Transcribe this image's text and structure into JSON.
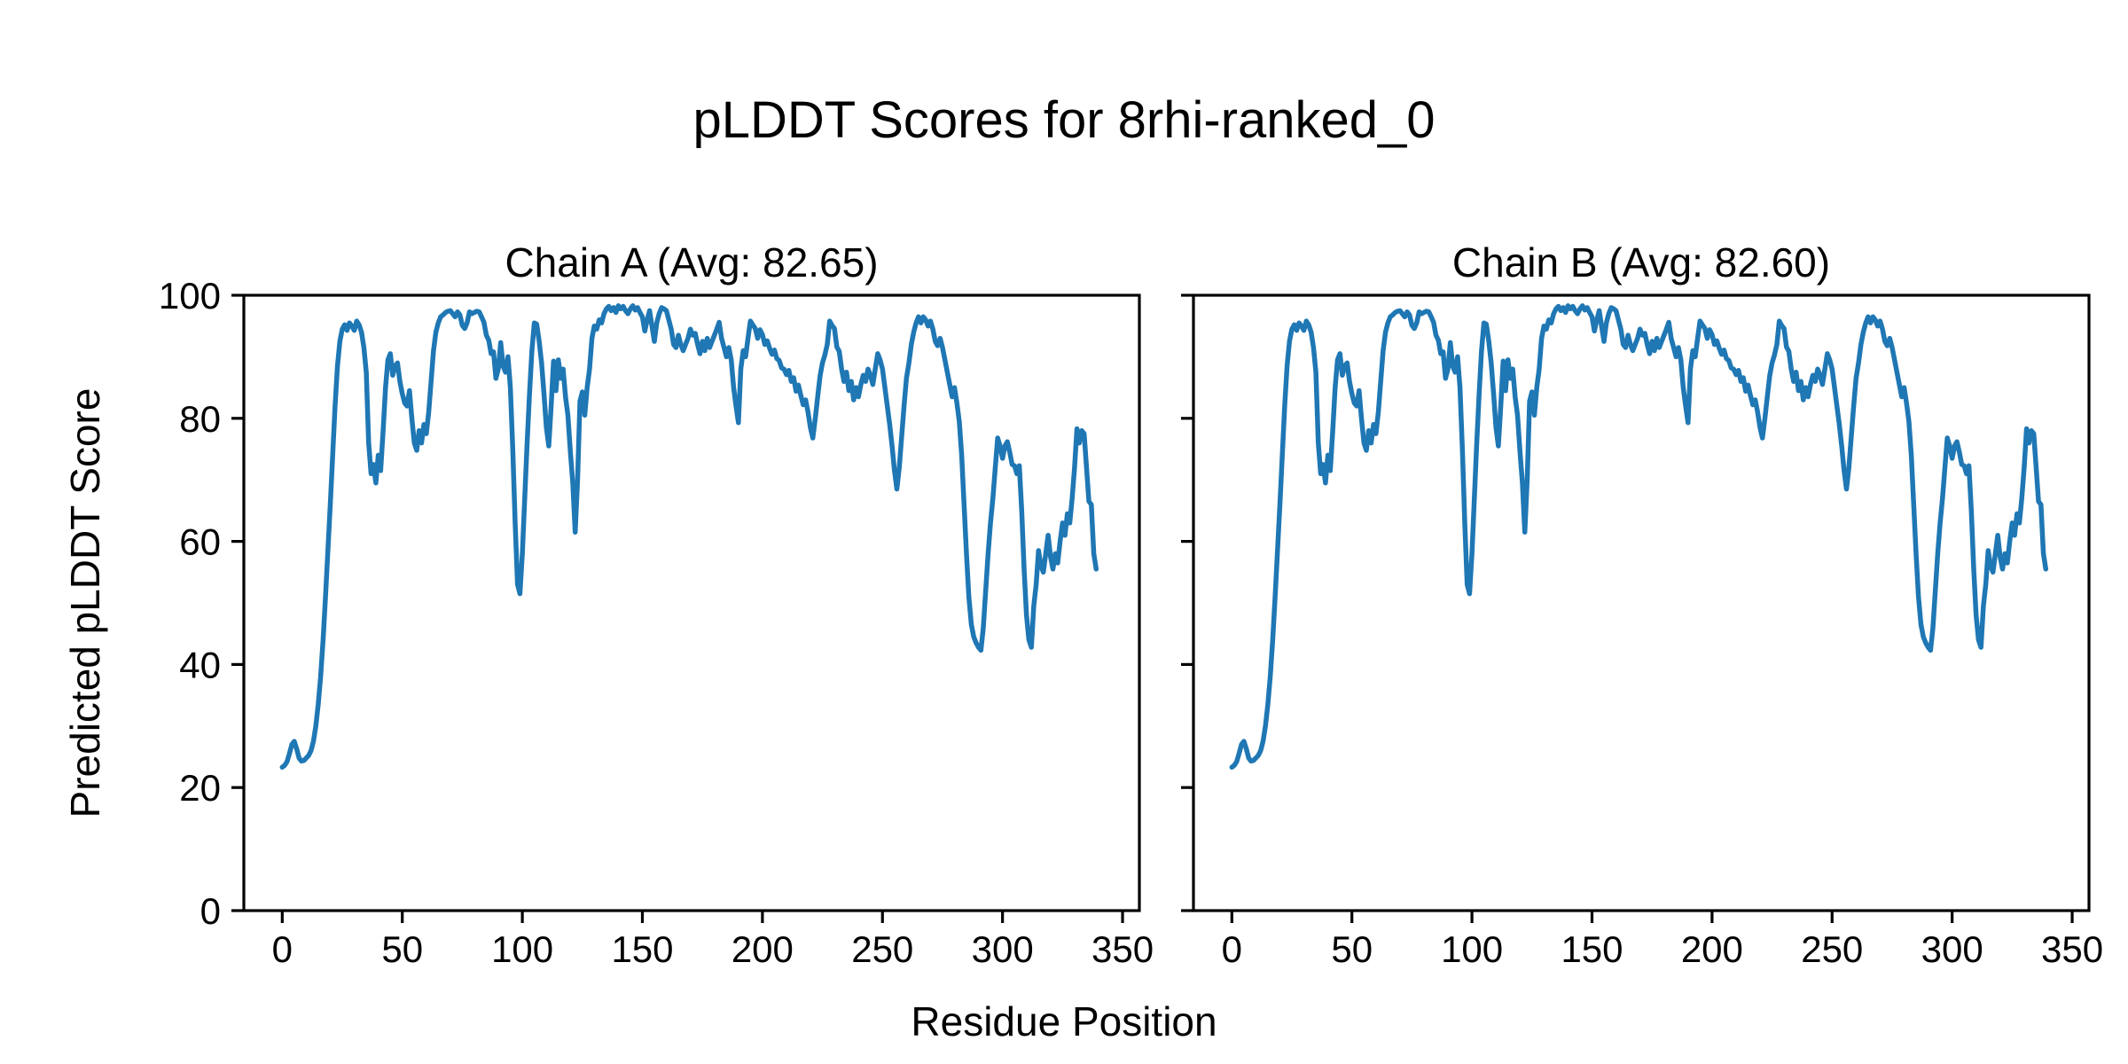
{
  "chart_data": {
    "type": "line",
    "suptitle": "pLDDT Scores for 8rhi-ranked_0",
    "xlabel": "Residue Position",
    "ylabel": "Predicted pLDDT Score",
    "xlim": [
      -16,
      357
    ],
    "ylim": [
      0,
      100
    ],
    "xticks": [
      0,
      50,
      100,
      150,
      200,
      250,
      300,
      350
    ],
    "yticks": [
      0,
      20,
      40,
      60,
      80,
      100
    ],
    "grid": false,
    "legend": "none",
    "line_color": "#1f77b4",
    "background_color": "#ffffff",
    "text_color": "#000000",
    "subplots": [
      {
        "title": "Chain A (Avg: 82.65)",
        "chain": "A",
        "avg_plddt": 82.65
      },
      {
        "title": "Chain B (Avg: 82.60)",
        "chain": "B",
        "avg_plddt": 82.6
      }
    ],
    "x_start": 0,
    "x_step": 1,
    "y": [
      23.3,
      23.6,
      24.2,
      25.5,
      27,
      27.5,
      26.3,
      24.8,
      24.3,
      24.4,
      24.8,
      25.2,
      26,
      27.5,
      30,
      33.5,
      38,
      44,
      51,
      58.5,
      66,
      74,
      82,
      88.5,
      92.5,
      94.5,
      95.2,
      94.3,
      95.5,
      95,
      94.3,
      95.8,
      95.2,
      94,
      91.5,
      87.5,
      76,
      71,
      72.5,
      69.5,
      74,
      71.5,
      78,
      85,
      89.5,
      90.5,
      87,
      88.5,
      89,
      86,
      84,
      82.5,
      82,
      84.5,
      80,
      76,
      74.8,
      78,
      76,
      79,
      77.5,
      81,
      86,
      91,
      94,
      95.5,
      96.5,
      96.8,
      97.2,
      97.4,
      97.5,
      97,
      96.5,
      97.3,
      96.8,
      95.1,
      94.6,
      95.5,
      97.3,
      97,
      97.2,
      97.4,
      97.3,
      96.5,
      95.6,
      93.5,
      92.7,
      90.5,
      90.8,
      86.5,
      88,
      92.3,
      88.5,
      87.5,
      90,
      85,
      75,
      63,
      53,
      51.5,
      58,
      67,
      76,
      84,
      91,
      95.5,
      95.3,
      92.5,
      89,
      84,
      78.5,
      75.5,
      82,
      89.3,
      84.5,
      89.5,
      86.5,
      88,
      83.5,
      80.5,
      74.5,
      69.5,
      61.5,
      70,
      82.8,
      84.3,
      80.5,
      85,
      88,
      93,
      95,
      94.5,
      96,
      95.5,
      97,
      97.8,
      98.2,
      97.5,
      98,
      97.2,
      98.3,
      97.8,
      98.2,
      97.5,
      97,
      97.8,
      98.3,
      97.6,
      98,
      97.2,
      96.5,
      94.2,
      96,
      97.5,
      95,
      92.5,
      95.5,
      97,
      98,
      97.8,
      97.5,
      96,
      94.5,
      92,
      91.5,
      93.5,
      92,
      91,
      92,
      93,
      94.5,
      93.5,
      93.8,
      92,
      90.5,
      92.5,
      91,
      93,
      91.5,
      92.5,
      93.5,
      94.5,
      95.6,
      93,
      91.5,
      90,
      91.5,
      89.5,
      85,
      82,
      79.3,
      88,
      91,
      90,
      93,
      95.8,
      95.2,
      94.6,
      93,
      94.4,
      93.6,
      92,
      92.6,
      91.4,
      90.4,
      91.1,
      89.7,
      89.4,
      88.2,
      88,
      87.1,
      87.8,
      86,
      86.6,
      84.4,
      85.4,
      83.7,
      82.2,
      83,
      81,
      78.5,
      76.8,
      80,
      83.5,
      86.9,
      89,
      90.3,
      92,
      95.8,
      95.1,
      94.6,
      91.6,
      90.9,
      88,
      86,
      87.5,
      84.5,
      86,
      83,
      85,
      83.5,
      85.5,
      87,
      86,
      88,
      87,
      85.5,
      88,
      90.5,
      89.5,
      88,
      85,
      82,
      79,
      75.5,
      71.5,
      68.5,
      72,
      77,
      82,
      86.5,
      89,
      92,
      94,
      95.5,
      96.5,
      95.5,
      96.5,
      96,
      95,
      95.8,
      94.5,
      92.5,
      91.8,
      93,
      91.5,
      89.5,
      87.5,
      85.5,
      83.5,
      85,
      82.5,
      79.5,
      74,
      66,
      58,
      51,
      46.5,
      44.5,
      43.5,
      42.8,
      42.3,
      46,
      52,
      58,
      63,
      67,
      72,
      76.8,
      75.5,
      73.5,
      75.5,
      76.2,
      74.5,
      72.5,
      72.3,
      71,
      72.3,
      65,
      55.5,
      48,
      44,
      42.8,
      49.5,
      53,
      58.5,
      56,
      55,
      58,
      61,
      57.5,
      55.5,
      58,
      56.5,
      60,
      63,
      61,
      64.5,
      63,
      67,
      72,
      78.3,
      76,
      78,
      77.5,
      72,
      66.5,
      66,
      58,
      55.5
    ]
  }
}
